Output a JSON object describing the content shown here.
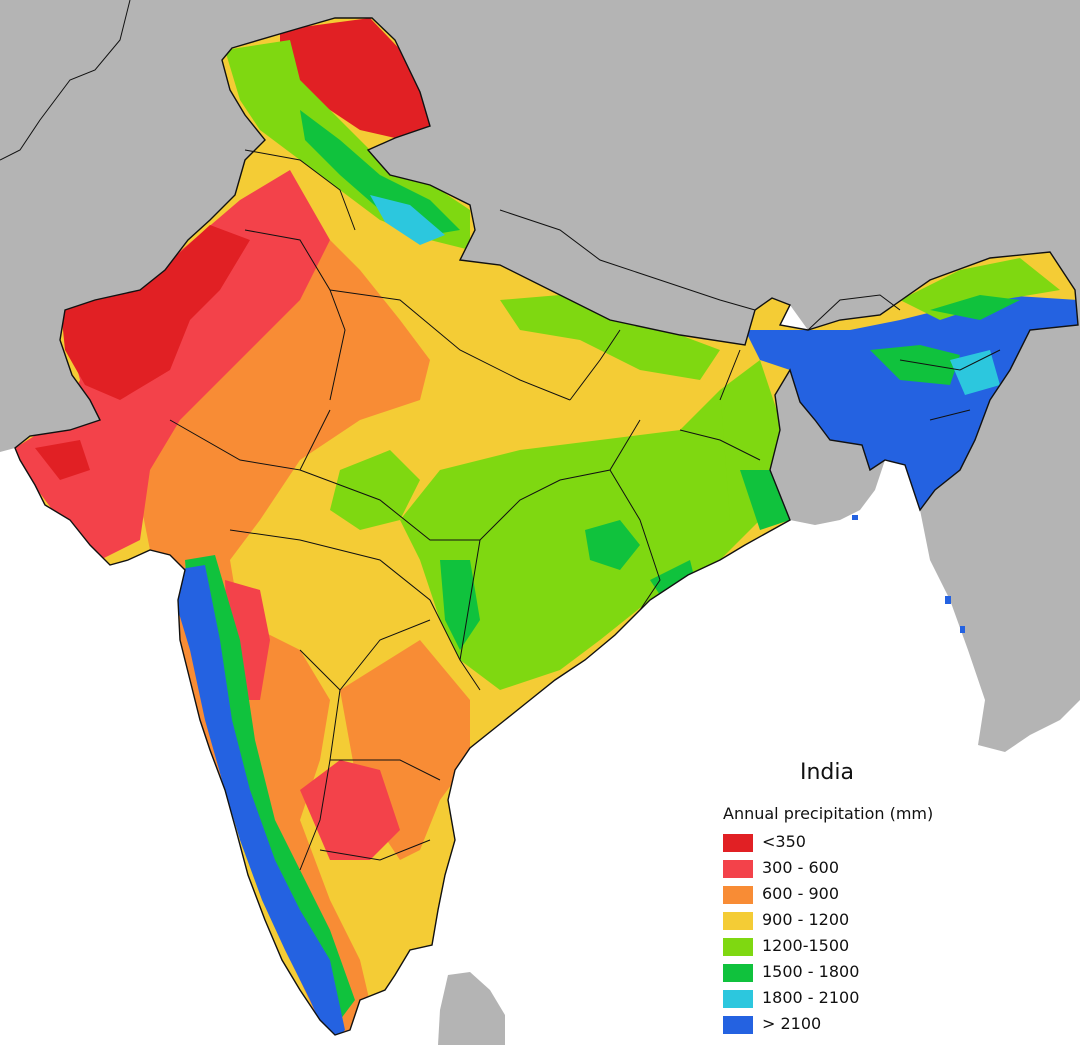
{
  "map": {
    "title": "India",
    "legend_title": "Annual precipitation (mm)",
    "legend": [
      {
        "label": "<350",
        "color": "#e12024"
      },
      {
        "label": "300 - 600",
        "color": "#f3424a"
      },
      {
        "label": "600 - 900",
        "color": "#f88c35"
      },
      {
        "label": "900 - 1200",
        "color": "#f4cc35"
      },
      {
        "label": "1200-1500",
        "color": "#7fd811"
      },
      {
        "label": "1500 - 1800",
        "color": "#10c23d"
      },
      {
        "label": "1800 - 2100",
        "color": "#2cc7de"
      },
      {
        "label": "> 2100",
        "color": "#2462e1"
      }
    ],
    "colors": {
      "land_outside": "#b4b4b4",
      "sea": "#ffffff",
      "border": "#111111"
    }
  }
}
